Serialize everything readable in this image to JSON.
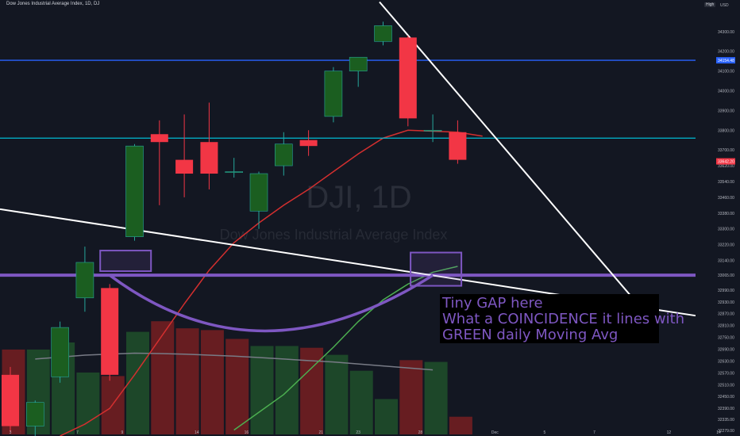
{
  "chart_data": {
    "type": "candlestick",
    "title": "Dow Jones Industrial Average Index, 1D, DJ",
    "badge": "High",
    "currency": "USD",
    "watermark": "DJI, 1D",
    "watermark_sub": "Dow Jones Industrial Average Index",
    "ylim": [
      32270,
      34420
    ],
    "y_ticks": [
      "34300.00",
      "34200.00",
      "34100.00",
      "34000.00",
      "33900.00",
      "33800.00",
      "33700.00",
      "33620.00",
      "33540.00",
      "33460.00",
      "33380.00",
      "33300.00",
      "33220.00",
      "33140.00",
      "33065.00",
      "32990.00",
      "32930.00",
      "32870.00",
      "32810.00",
      "32750.00",
      "32690.00",
      "32630.00",
      "32570.00",
      "32510.00",
      "32450.00",
      "32390.00",
      "32335.00",
      "32279.00"
    ],
    "x_ticks": [
      "3",
      "7",
      "9",
      "14",
      "16",
      "21",
      "23",
      "28",
      "Dec",
      "5",
      "7",
      "12",
      "14"
    ],
    "candles": [
      {
        "o": 32560,
        "h": 32600,
        "l": 32270,
        "c": 32300
      },
      {
        "o": 32300,
        "h": 32430,
        "l": 32240,
        "c": 32420
      },
      {
        "o": 32550,
        "h": 32830,
        "l": 32520,
        "c": 32800
      },
      {
        "o": 32950,
        "h": 33210,
        "l": 32880,
        "c": 33130
      },
      {
        "o": 33000,
        "h": 33020,
        "l": 32530,
        "c": 32560
      },
      {
        "o": 33260,
        "h": 33730,
        "l": 33240,
        "c": 33720
      },
      {
        "o": 33780,
        "h": 33850,
        "l": 33420,
        "c": 33740
      },
      {
        "o": 33650,
        "h": 33880,
        "l": 33460,
        "c": 33580
      },
      {
        "o": 33740,
        "h": 33940,
        "l": 33500,
        "c": 33580
      },
      {
        "o": 33590,
        "h": 33660,
        "l": 33560,
        "c": 33590
      },
      {
        "o": 33390,
        "h": 33590,
        "l": 33300,
        "c": 33580
      },
      {
        "o": 33620,
        "h": 33790,
        "l": 33570,
        "c": 33730
      },
      {
        "o": 33750,
        "h": 33800,
        "l": 33670,
        "c": 33720
      },
      {
        "o": 33870,
        "h": 34120,
        "l": 33840,
        "c": 34100
      },
      {
        "o": 34100,
        "h": 34170,
        "l": 34020,
        "c": 34170
      },
      {
        "o": 34250,
        "h": 34350,
        "l": 34230,
        "c": 34330
      },
      {
        "o": 34270,
        "h": 34280,
        "l": 33820,
        "c": 33860
      },
      {
        "o": 33800,
        "h": 33880,
        "l": 33740,
        "c": 33800
      },
      {
        "o": 33790,
        "h": 33850,
        "l": 33630,
        "c": 33650
      }
    ],
    "volumes": [
      {
        "v": 480,
        "up": false
      },
      {
        "v": 480,
        "up": true
      },
      {
        "v": 520,
        "up": true
      },
      {
        "v": 350,
        "up": true
      },
      {
        "v": 330,
        "up": false
      },
      {
        "v": 580,
        "up": true
      },
      {
        "v": 640,
        "up": false
      },
      {
        "v": 600,
        "up": false
      },
      {
        "v": 590,
        "up": false
      },
      {
        "v": 540,
        "up": false
      },
      {
        "v": 500,
        "up": true
      },
      {
        "v": 500,
        "up": true
      },
      {
        "v": 490,
        "up": false
      },
      {
        "v": 450,
        "up": true
      },
      {
        "v": 360,
        "up": true
      },
      {
        "v": 200,
        "up": true
      },
      {
        "v": 420,
        "up": false
      },
      {
        "v": 410,
        "up": true
      },
      {
        "v": 100,
        "up": false
      }
    ],
    "horizontal_lines": [
      {
        "price": 34154.48,
        "label": "34154.48",
        "color": "#2962ff"
      },
      {
        "price": 33760,
        "color": "#00bcd4"
      },
      {
        "price": 33065,
        "color": "#7e57c2"
      }
    ],
    "last_price": {
      "price": 33642.2,
      "label": "33642.20",
      "color": "#f23645"
    },
    "annotation": [
      "Tiny GAP here",
      "What a COINCIDENCE it lines with",
      "GREEN daily Moving Avg"
    ],
    "colors": {
      "up": "#1b5e20",
      "up_border": "#26a69a",
      "down": "#f23645",
      "ma_red": "#d32f2f",
      "ma_green": "#4caf50",
      "ma_gray": "#787b86",
      "accent": "#7e57c2"
    }
  }
}
